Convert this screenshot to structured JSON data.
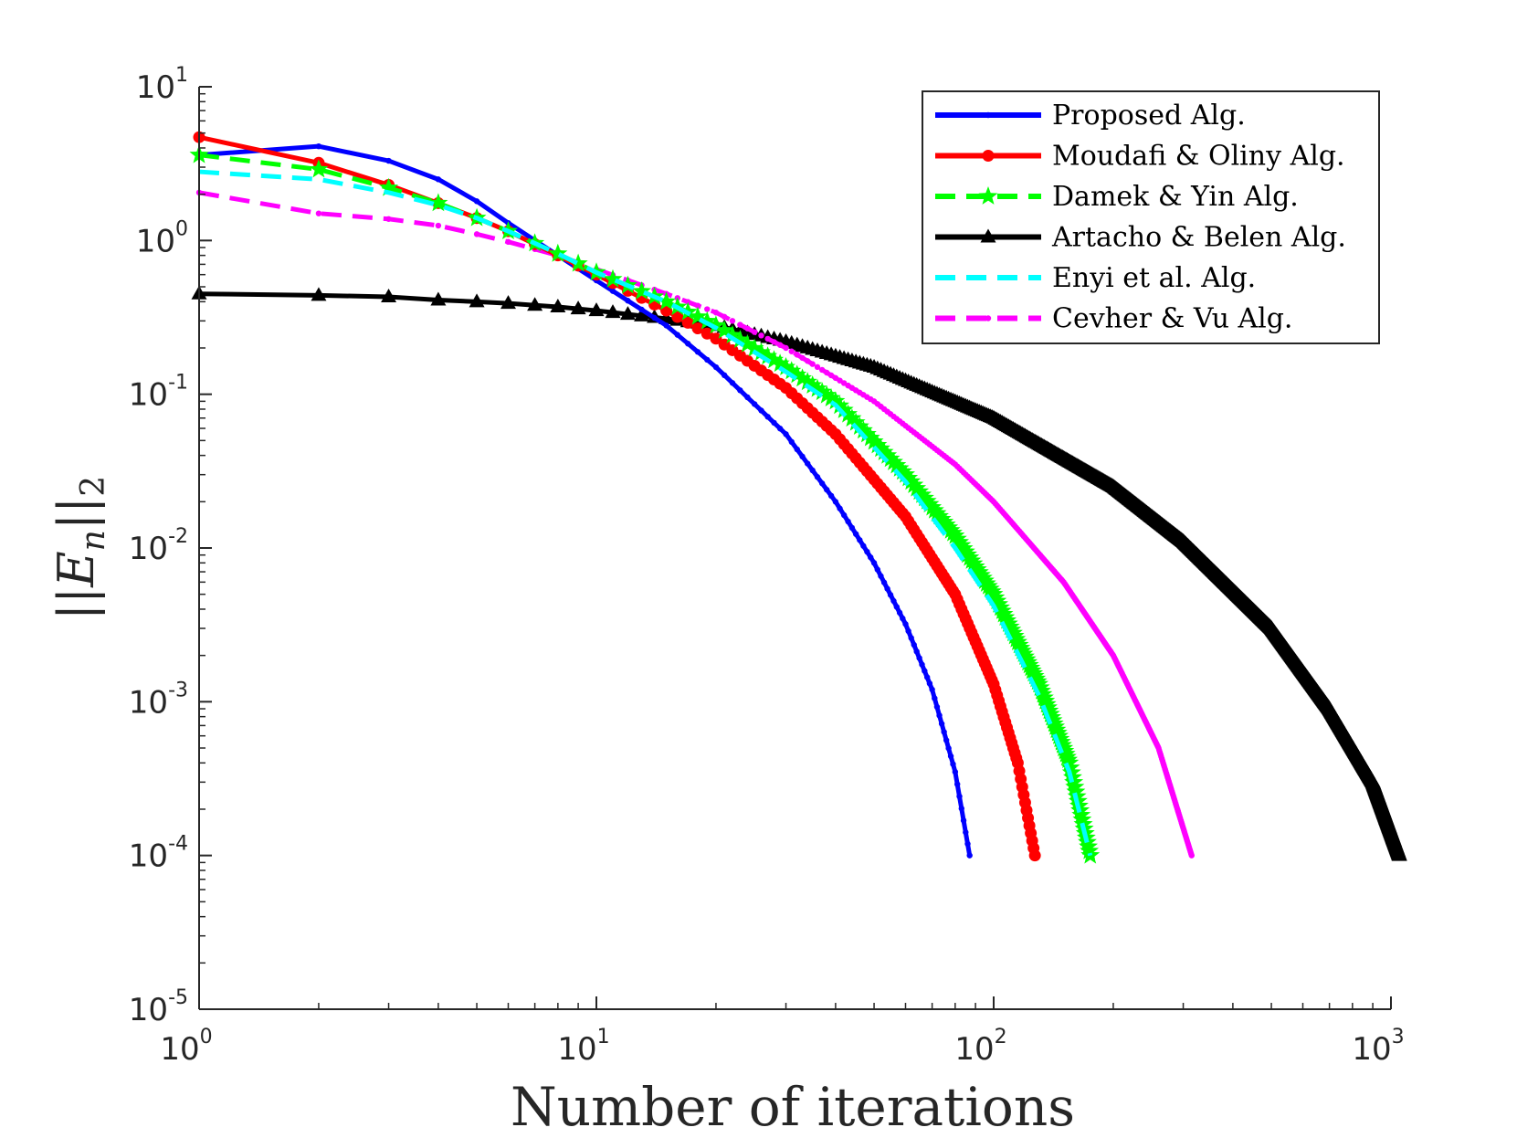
{
  "chart_data": {
    "type": "line",
    "title": "",
    "xlabel": "Number of iterations",
    "ylabel": "||E_n||_2",
    "xscale": "log",
    "yscale": "log",
    "xlim": [
      1,
      1000
    ],
    "ylim": [
      1e-05,
      10
    ],
    "x_ticks": [
      {
        "base": "10",
        "exp": "0",
        "value": 1
      },
      {
        "base": "10",
        "exp": "1",
        "value": 10
      },
      {
        "base": "10",
        "exp": "2",
        "value": 100
      },
      {
        "base": "10",
        "exp": "3",
        "value": 1000
      }
    ],
    "y_ticks": [
      {
        "base": "10",
        "exp": "-5",
        "value": 1e-05
      },
      {
        "base": "10",
        "exp": "-4",
        "value": 0.0001
      },
      {
        "base": "10",
        "exp": "-3",
        "value": 0.001
      },
      {
        "base": "10",
        "exp": "-2",
        "value": 0.01
      },
      {
        "base": "10",
        "exp": "-1",
        "value": 0.1
      },
      {
        "base": "10",
        "exp": "0",
        "value": 1
      },
      {
        "base": "10",
        "exp": "1",
        "value": 10
      }
    ],
    "legend_position": "top-right",
    "series": [
      {
        "name": "Proposed Alg.",
        "color": "#0000ff",
        "style": "solid",
        "marker": "dot",
        "iterations": 87,
        "anchors": [
          [
            1,
            3.6
          ],
          [
            2,
            4.1
          ],
          [
            3,
            3.3
          ],
          [
            4,
            2.5
          ],
          [
            5,
            1.8
          ],
          [
            6,
            1.3
          ],
          [
            8,
            0.8
          ],
          [
            10,
            0.55
          ],
          [
            15,
            0.28
          ],
          [
            20,
            0.15
          ],
          [
            30,
            0.055
          ],
          [
            40,
            0.02
          ],
          [
            50,
            0.008
          ],
          [
            60,
            0.0032
          ],
          [
            70,
            0.0012
          ],
          [
            80,
            0.00035
          ],
          [
            87,
            0.0001
          ]
        ]
      },
      {
        "name": "Moudafi & Oliny Alg.",
        "color": "#ff0000",
        "style": "solid",
        "marker": "circle",
        "iterations": 127,
        "anchors": [
          [
            1,
            4.7
          ],
          [
            2,
            3.2
          ],
          [
            3,
            2.3
          ],
          [
            4,
            1.75
          ],
          [
            5,
            1.4
          ],
          [
            6,
            1.15
          ],
          [
            8,
            0.8
          ],
          [
            10,
            0.6
          ],
          [
            15,
            0.35
          ],
          [
            20,
            0.23
          ],
          [
            30,
            0.11
          ],
          [
            40,
            0.055
          ],
          [
            60,
            0.016
          ],
          [
            80,
            0.005
          ],
          [
            100,
            0.0013
          ],
          [
            115,
            0.0004
          ],
          [
            127,
            0.0001
          ]
        ]
      },
      {
        "name": "Damek & Yin Alg.",
        "color": "#00ff00",
        "style": "dashed",
        "marker": "star",
        "iterations": 175,
        "anchors": [
          [
            1,
            3.6
          ],
          [
            2,
            2.9
          ],
          [
            3,
            2.2
          ],
          [
            4,
            1.75
          ],
          [
            5,
            1.4
          ],
          [
            6,
            1.15
          ],
          [
            8,
            0.82
          ],
          [
            10,
            0.62
          ],
          [
            15,
            0.4
          ],
          [
            20,
            0.28
          ],
          [
            30,
            0.15
          ],
          [
            40,
            0.09
          ],
          [
            60,
            0.03
          ],
          [
            80,
            0.012
          ],
          [
            100,
            0.005
          ],
          [
            130,
            0.0013
          ],
          [
            155,
            0.0004
          ],
          [
            175,
            0.0001
          ]
        ]
      },
      {
        "name": "Artacho & Belen Alg.",
        "color": "#000000",
        "style": "solid",
        "marker": "triangle",
        "iterations": 1050,
        "anchors": [
          [
            1,
            0.45
          ],
          [
            2,
            0.44
          ],
          [
            3,
            0.43
          ],
          [
            4,
            0.41
          ],
          [
            5,
            0.4
          ],
          [
            6,
            0.39
          ],
          [
            8,
            0.37
          ],
          [
            10,
            0.35
          ],
          [
            15,
            0.31
          ],
          [
            20,
            0.28
          ],
          [
            30,
            0.22
          ],
          [
            50,
            0.15
          ],
          [
            100,
            0.07
          ],
          [
            200,
            0.025
          ],
          [
            300,
            0.011
          ],
          [
            500,
            0.003
          ],
          [
            700,
            0.0009
          ],
          [
            900,
            0.0003
          ],
          [
            1050,
            0.0001
          ]
        ]
      },
      {
        "name": "Enyi et al. Alg.",
        "color": "#00ffff",
        "style": "dashed",
        "marker": "none",
        "iterations": 175,
        "anchors": [
          [
            1,
            2.8
          ],
          [
            2,
            2.5
          ],
          [
            3,
            2.05
          ],
          [
            4,
            1.7
          ],
          [
            5,
            1.4
          ],
          [
            6,
            1.15
          ],
          [
            8,
            0.82
          ],
          [
            10,
            0.62
          ],
          [
            15,
            0.4
          ],
          [
            20,
            0.27
          ],
          [
            30,
            0.14
          ],
          [
            40,
            0.085
          ],
          [
            60,
            0.027
          ],
          [
            80,
            0.01
          ],
          [
            100,
            0.0042
          ],
          [
            130,
            0.0011
          ],
          [
            155,
            0.00035
          ],
          [
            175,
            0.0001
          ]
        ]
      },
      {
        "name": "Cevher & Vu Alg.",
        "color": "#ff00ff",
        "style": "dashed",
        "marker": "dot",
        "iterations": 315,
        "anchors": [
          [
            1,
            2.05
          ],
          [
            2,
            1.5
          ],
          [
            3,
            1.38
          ],
          [
            4,
            1.25
          ],
          [
            5,
            1.1
          ],
          [
            6,
            0.98
          ],
          [
            8,
            0.8
          ],
          [
            10,
            0.65
          ],
          [
            15,
            0.45
          ],
          [
            20,
            0.34
          ],
          [
            30,
            0.2
          ],
          [
            50,
            0.09
          ],
          [
            80,
            0.035
          ],
          [
            100,
            0.02
          ],
          [
            150,
            0.006
          ],
          [
            200,
            0.002
          ],
          [
            260,
            0.0005
          ],
          [
            315,
            0.0001
          ]
        ]
      }
    ]
  }
}
